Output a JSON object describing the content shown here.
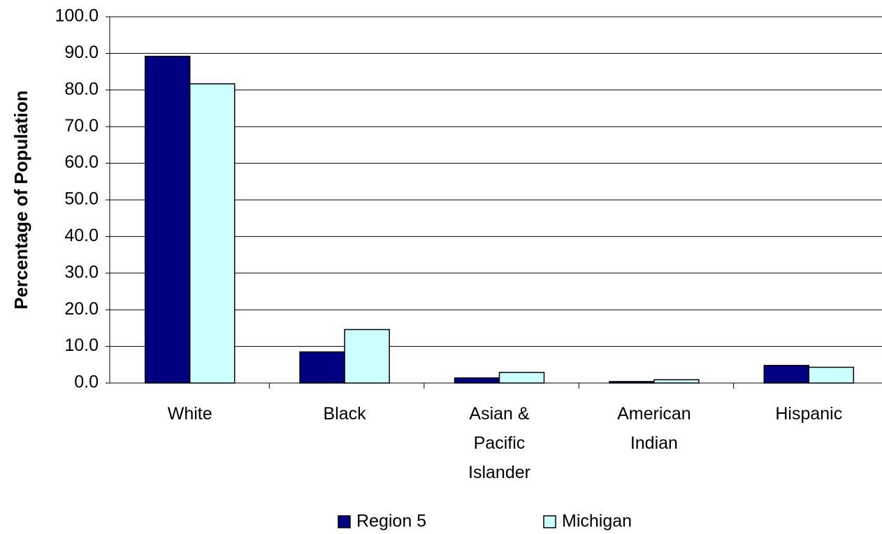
{
  "chart_data": {
    "type": "bar",
    "y_label": "Percentage of Population",
    "categories": [
      "White",
      "Black",
      "Asian & Pacific Islander",
      "American Indian",
      "Hispanic"
    ],
    "series": [
      {
        "name": "Region 5",
        "color": "#000080",
        "values": [
          89.2,
          8.5,
          1.4,
          0.4,
          4.8
        ]
      },
      {
        "name": "Michigan",
        "color": "#ccffff",
        "values": [
          81.7,
          14.6,
          2.9,
          0.9,
          4.3
        ]
      }
    ],
    "ylim": [
      0,
      100
    ],
    "yticks": [
      {
        "value": 0,
        "label": "0.0"
      },
      {
        "value": 10,
        "label": "10.0"
      },
      {
        "value": 20,
        "label": "20.0"
      },
      {
        "value": 30,
        "label": "30.0"
      },
      {
        "value": 40,
        "label": "40.0"
      },
      {
        "value": 50,
        "label": "50.0"
      },
      {
        "value": 60,
        "label": "60.0"
      },
      {
        "value": 70,
        "label": "70.0"
      },
      {
        "value": 80,
        "label": "80.0"
      },
      {
        "value": 90,
        "label": "90.0"
      },
      {
        "value": 100,
        "label": "100.0"
      }
    ],
    "grid": true
  }
}
